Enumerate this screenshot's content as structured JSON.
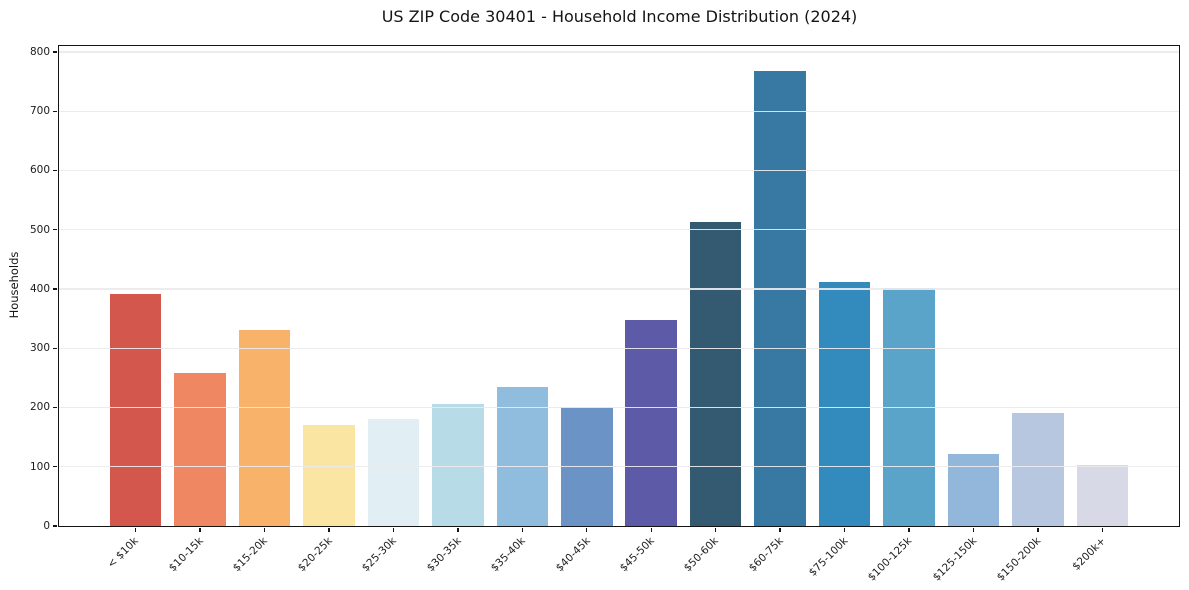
{
  "chart_data": {
    "type": "bar",
    "title": "US ZIP Code 30401 - Household Income Distribution (2024)",
    "xlabel": "",
    "ylabel": "Households",
    "categories": [
      "< $10k",
      "$10-15k",
      "$15-20k",
      "$20-25k",
      "$25-30k",
      "$30-35k",
      "$35-40k",
      "$40-45k",
      "$45-50k",
      "$50-60k",
      "$60-75k",
      "$75-100k",
      "$100-125k",
      "$125-150k",
      "$150-200k",
      "$200k+"
    ],
    "values": [
      392,
      259,
      330,
      170,
      180,
      206,
      235,
      201,
      348,
      513,
      768,
      412,
      402,
      122,
      190,
      103
    ],
    "colors": [
      "#d4574d",
      "#ef8762",
      "#f8b269",
      "#fbe5a3",
      "#e1eff5",
      "#b7dbe7",
      "#90bddd",
      "#6c93c6",
      "#5d5ba7",
      "#335a70",
      "#3779a3",
      "#338abd",
      "#5ba4c9",
      "#93b7da",
      "#b8c7e0",
      "#d8d9e6"
    ],
    "y_ticks": [
      0,
      100,
      200,
      300,
      400,
      500,
      600,
      700,
      800
    ],
    "ylim": [
      0,
      810
    ],
    "grid": true,
    "grid_position": "above-bars",
    "legend": null,
    "style": {
      "background": "#ffffff",
      "grid_color": "rgba(234,234,238,0.92)",
      "spine_color": "#141414",
      "text_color": "#1c1c1c"
    }
  }
}
